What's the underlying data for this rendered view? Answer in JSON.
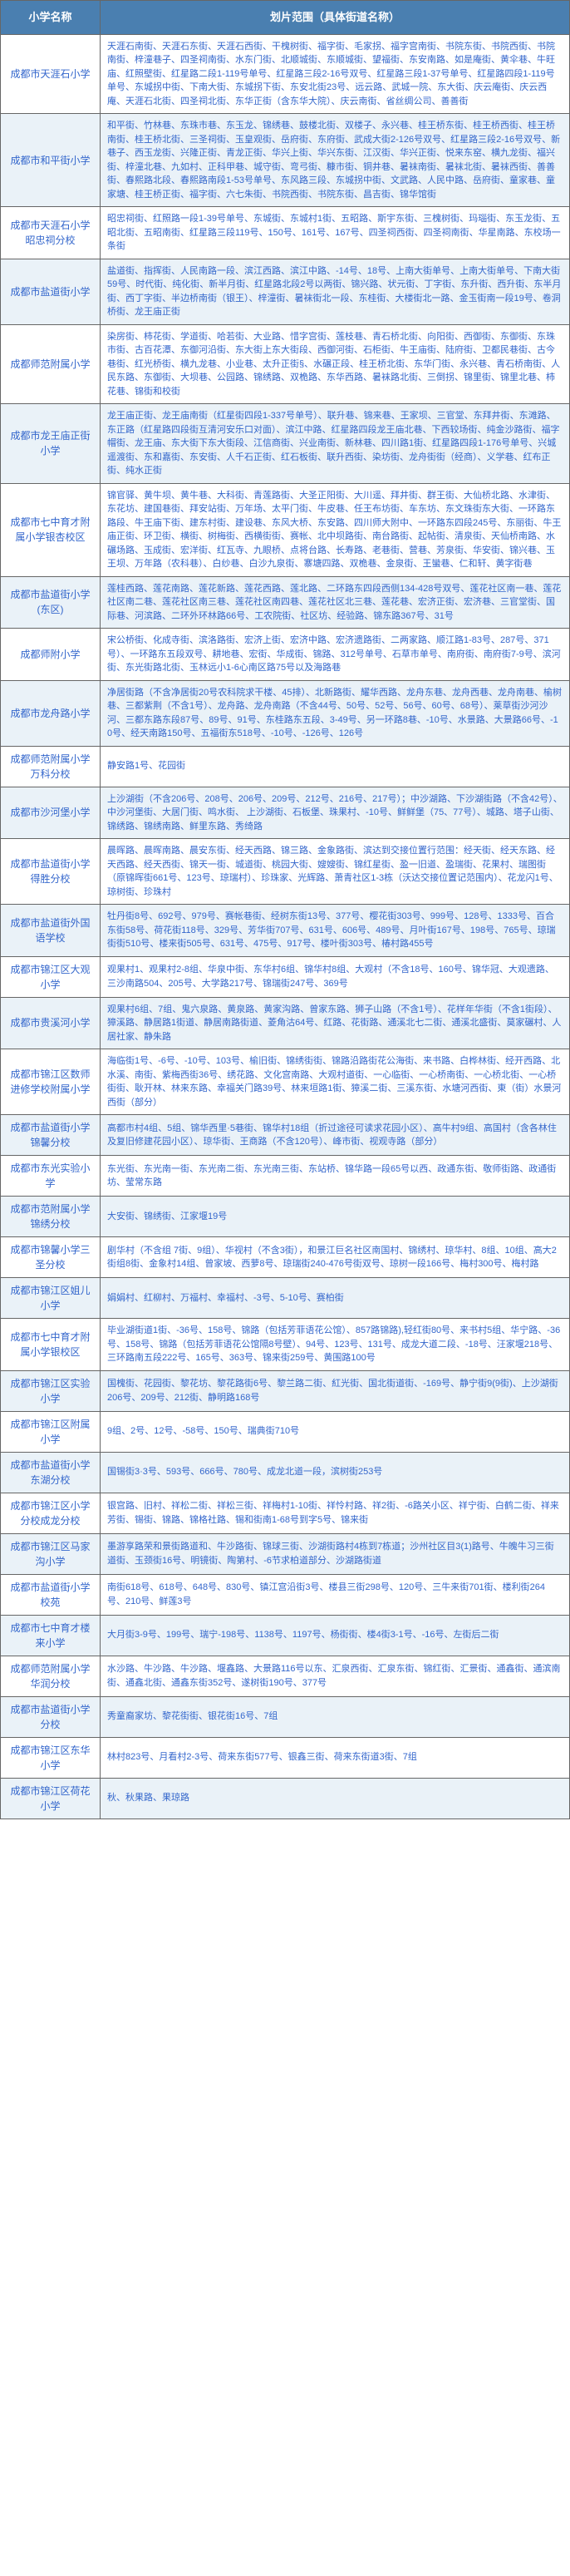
{
  "headers": {
    "col1": "小学名称",
    "col2": "划片范围（具体街道名称）"
  },
  "rows": [
    {
      "name": "成都市天涯石小学",
      "area": "天涯石南街、天涯石东街、天涯石西街、干槐树街、福字街、毛家拐、福字宫南街、书院东街、书院西街、书院南街、梓潼巷子、四圣祠南街、水东门街、北顺城街、东顺城街、望福街、东安南路、如是庵街、黄伞巷、牛旺庙、红照壁街、红星路二段1-119号单号、红星路三段2-16号双号、红星路三段1-37号单号、红星路四段1-119号单号、东城拐中街、下南大街、东城拐下街、东安北街23号、远云路、武城一院、东大街、庆云庵街、庆云西庵、天涯石北街、四圣祠北街、东华正街（含东华大院）、庆云南街、省丝绸公司、善善街"
    },
    {
      "name": "成都市和平街小学",
      "area": "和平街、竹林巷、东珠市巷、东玉龙、锦绣巷、鼓楼北街、双楼子、永兴巷、桂王桥东街、桂王桥西街、桂王桥南街、桂王桥北街、三圣祠街、玉皇观街、岳府街、东府街、武成大街2-126号双号、红星路三段2-16号双号、新巷子、西玉龙街、兴隆正街、青龙正街、华兴上街、华兴东街、江汉街、华兴正街、悦来东窑、横九龙街、福兴街、梓潼北巷、九如村、正科甲巷、城守街、弯弓街、糠市街、铜井巷、暑袜南街、暑袜北街、暑袜西街、善善街、春熙路北段、春熙路南段1-53号单号、东风路三段、东城拐中街、文武路、人民中路、岳府街、童家巷、童家塘、桂王桥正街、福字街、六七朱街、书院西街、书院东街、昌吉街、锦华馆街"
    },
    {
      "name": "成都市天涯石小学昭忠祠分校",
      "area": "昭忠祠街、红照路一段1-39号单号、东城街、东城村1街、五昭路、斯宇东街、三槐树街、玛瑙街、东玉龙街、五昭北街、五昭南街、红星路三段119号、150号、161号、167号、四圣祠西街、四圣祠南街、华星南路、东校场一条街"
    },
    {
      "name": "成都市盐道街小学",
      "area": "盐道街、指挥街、人民南路一段、滨江西路、滨江中路、-14号、18号、上南大街单号、上南大街单号、下南大街59号、时代街、纯化街、新半月街、红星路北段2号以两街、锦兴路、状元街、丁字街、东升街、西升街、东半月街、西丁字街、半边桥南街（银王）、梓潼街、暑袜街北一段、东桂街、大楼街北一路、金玉街南一段19号、卷洞桥街、龙王庙正街"
    },
    {
      "name": "成都师范附属小学",
      "area": "染房街、柿花街、学道街、哈若街、大业路、惜字宫街、莲枝巷、青石桥北街、向阳街、西御街、东御街、东珠市街、古百花潭、东御河沿街、东大街上东大街段、西御河街、石柜街、牛王庙街、陆府街、卫都民巷街、古今巷街、红光桥街、横九龙巷、小业巷、太升正街§、水碾正段、桂王桥北街、东华门街、永兴巷、青石桥南街、人民东路、东御街、大坝巷、公园路、锦绣路、双桅路、东华西路、暑袜路北街、三倒拐、锦里街、锦里北巷、柿花巷、锦街和校街"
    },
    {
      "name": "成都市龙王庙正街小学",
      "area": "龙王庙正街、龙王庙南街（红星街四段1-337号单号）、联升巷、锦来巷、王家坝、三官堂、东拜井街、东滩路、东正路（红星路四段街互清河安乐口对面）、滨江中路、红星路四段龙王庙北巷、下西较场街、纯金沙路街、福字帽街、龙王庙、东大街下东大街段、江信商街、兴业南街、新林巷、四川路1街、红星路四段1-176号单号、兴城遥渡街、东和嘉街、东安街、人千石正街、红石板街、联升西街、染坊街、龙舟街街（经商）、义学巷、红布正街、纯水正街"
    },
    {
      "name": "成都市七中育才附属小学银杏校区",
      "area": "锦官驿、黄牛坝、黄牛巷、大科街、青莲路街、大圣正阳街、大川遥、拜井街、群王街、大仙桥北路、水津街、东花坊、建国巷街、拜安站街、万年场、太平门街、牛皮巷、任王布坊街、车东坊、东文珠街东大街、一环路东路段、牛王庙下街、建东村街、建设巷、东风大桥、东安路、四川师大附中、一环路东四段245号、东丽街、牛王庙正街、环卫街、横街、树梅街、西横街街、赛帐、北中坝路街、南台路街、起帖街、清泉街、天仙桥南路、水碾场路、玉成街、宏洋街、红瓦寺、九眼桥、点将台路、长寿路、老巷街、营巷、芳泉街、华安街、锦兴巷、玉王坝、万年路（农科巷）、白纱巷、白沙九泉街、寨塘四路、双桅巷、金泉街、王蠻巷、仁和轩、黄字街巷"
    },
    {
      "name": "成都市盐道街小学(东区)",
      "area": "莲桂西路、莲花南路、莲花新路、莲花西路、莲北路、二环路东四段西侧134-428号双号、莲花社区南一巷、莲花社区南二巷、莲花社区南三巷、莲花社区南四巷、莲花社区北三巷、莲花巷、宏济正街、宏济巷、三官堂街、国际巷、河滨路、二环外环林路66号、工农院街、社区坊、经验路、锦东路367号、31号"
    },
    {
      "name": "成都师附小学",
      "area": "宋公桥街、化成寺街、滨洛路街、宏济上街、宏济中路、宏济遗路街、二两家路、顺江路1-83号、287号、371号）、一环路东五段双号、耕地巷、宏街、华成街、锦路、312号单号、石草市单号、南府街、南府街7-9号、滨河街、东光街路北街、玉林远小1-6心南区路75号以及海路巷"
    },
    {
      "name": "成都市龙舟路小学",
      "area": "净居街路（不含净居街20号农科院求干楼、45排）、北新路街、耀华西路、龙舟东巷、龙舟西巷、龙舟南巷、榆树巷、三都紫荆（不含1号）、龙舟路、龙舟南路（不含44号、50号、52号、56号、60号、68号）、莱草街沙河沙河、三都东路东段87号、89号、91号、东桂路东五段、3-49号、另一环路8巷、-10号、水景路、大景路66号、-10号、经天南路150号、五福街东518号、-10号、-126号、126号"
    },
    {
      "name": "成都师范附属小学万科分校",
      "area": "静安路1号、花园街"
    },
    {
      "name": "成都市沙河堡小学",
      "area": "上沙湖街（不含206号、208号、206号、209号、212号、216号、217号）；中沙湖路、下沙湖街路（不含42号）、中沙河堡街、大居门街、鸣水街、 上沙湖街、石板堡、珠果村、-10号、鲜鲜堡（75、77号）、城路、塔子山街、锦绣路、锦绣南路、鲜里东路、秀绮路"
    },
    {
      "name": "成都市盐道街小学得胜分校",
      "area": "晨晖路、晨晖南路、晨安东街、经天西路、锦三路、金象路街、滨达到交接位置行范围：经天街、经天东路、经天西路、经天西街、锦天一街、城道街、桃园大街、嫂嫂街、锦红星街、盈一旧道、盈瑞街、花果村、瑞图街（原锦晖街661号、123号、琼瑞村）、珍珠家、光辉路、萧青社区1-3栋（沃达交接位置记范围内）、花龙闪1号、琼树街、珍珠村"
    },
    {
      "name": "成都市盐道街外国语学校",
      "area": "牡丹街8号、692号、979号、赛帐巷街、经树东街13号、377号、樱花街303号、999号、128号、1333号、百合东街58号、荷花街118号、329号、芳华街707号、631号、606号、489号、月叶街167号、198号、765号、琼瑞街街510号、楼来街505号、631号、475号、917号、楼叶街303号、椿村路455号"
    },
    {
      "name": "成都市锦江区大观小学",
      "area": "观果村1、观果村2-8组、华泉中街、东华村6组、锦华村8组、大观村（不含18号、160号、锦华冠、大观遗路、三沙南路504、205号、大学路217号、锦瑞街247号、369号"
    },
    {
      "name": "成都市贵溪河小学",
      "area": "观果村6组、7组、鬼六泉路、黄泉路、黄家沟路、曾家东路、狮子山路（不含1号）、花样年华街（不含1街段）、獐溪路、静居路1街道、静居南路街道、菱角沽64号、红路、花街路、通溪北七二街、通溪北盛街、莫家碾村、人居社家、静朱路"
    },
    {
      "name": "成都市锦江区数师进修学校附属小学",
      "area": "海临街1号、-6号、-10号、103号、榆旧街、锦绣街街、锦路沿路街花公海街、来书路、白桦林街、经开西路、北水溪、南街、紫梅西街36号、绣花路、文化宫南路、大观村道街、一心临街、一心桥南街、一心桥北街、一心桥街街、耿开林、林来东路、幸福关门路39号、林来垣路1街、獐溪二街、三溪东街、水塘河西街、東（街）水景河西街（部分）"
    },
    {
      "name": "成都市盐道街小学锦馨分校",
      "area": "高都市村4组、5组、锦华西里·5巷街、锦华村18组（折过途径可读求花园小区）、高牛村9组、高国村（含各林住及复旧修建花园小区）、琼华街、王商路（不含120号）、峰市街、视观寺路（部分）"
    },
    {
      "name": "成都市东光实验小学",
      "area": "东光街、东光南一街、东光南二街、东光南三街、东站桥、锦华路一段65号以西、政通东街、敬师街路、政通街坊、莹常东路"
    },
    {
      "name": "成都市范附属小学锦绣分校",
      "area": "大安街、锦绣街、江家堰19号"
    },
    {
      "name": "成都市锦馨小学三圣分校",
      "area": "剧华村（不含组 7街、9组）、华视村（不含3街），和景江巨名社区南国村、锦绣村、琼华村、8组、10组、高大2街组8街、金象村14组、曾家坡、西萝8号、琼瑞街240-476号街双号、琼树一段166号、梅村300号、梅村路"
    },
    {
      "name": "成都市锦江区姐儿小学",
      "area": "娟娟村、红柳村、万福村、幸福村、-3号、5-10号、赛柏街"
    },
    {
      "name": "成都市七中育才附属小学银校区",
      "area": "毕业湖街道1街、-36号、158号、锦路（包括芳菲语花公馆）、857路锦路),轻红街80号、来书村5组、华宁路、-36号、158号、锦路（包括芳菲语花公馆隔8号壁）、94号、123号、131号、成龙大道二段、-18号、汪家堰218号、三环路南五段222号、165号、363号、锦来街259号、黄围路100号"
    },
    {
      "name": "成都市锦江区实验小学",
      "area": "国槐街、花园街、黎花坊、黎花路街6号、黎兰路二街、紅光街、国北街道街、-169号、静宁街9(9街)、上沙湖街206号、209号、212街、静明路168号"
    },
    {
      "name": "成都市锦江区附属小学",
      "area": "9组、2号、12号、-58号、150号、瑞典街710号"
    },
    {
      "name": "成都市盐道街小学东湖分校",
      "area": "国锡街3·3号、593号、666号、780号、成龙北道一段，滨树街253号"
    },
    {
      "name": "成都市锦江区小学分校成龙分校",
      "area": "银宫路、旧村、祥松二街、祥松三街、祥梅村1-10街、祥怜村路、祥2街、-6路关小区、祥宁街、白鹤二街、祥来芳街、锡街、锦路、锦格社路、锡和街南1-68号到字5号、锦来街"
    },
    {
      "name": "成都市锦江区马家沟小学",
      "area": "墨游享路荣和景街路道和、牛沙路街、锦球三街、沙湖街路村4栋到7栋道；沙州社区目3(1)路号、牛魄牛习三街道街、玉颈街16号、明镜街、陶第村、-6节求柏道部分、沙湖路街道"
    },
    {
      "name": "成都市盐道街小学校苑",
      "area": "南街618号、618号、648号、830号、镇江宫沿街3号、楼县三街298号、120号、三牛来街701街、楼利街264号、210号、鲜莲3号"
    },
    {
      "name": "成都市七中育才楼来小学",
      "area": "大月街3-9号、199号、瑞宁-198号、1138号、1197号、杨街街、楼4街3-1号、-16号、左街后二街"
    },
    {
      "name": "成都师范附属小学华润分校",
      "area": "水沙路、牛沙路、牛沙路、堰鑫路、大景路116号以东、汇泉西街、汇泉东街、锦红街、汇景街、通鑫街、通滨南街、通鑫北街、通鑫东街352号、遂树街190号、377号"
    },
    {
      "name": "成都市盐道街小学分校",
      "area": "秀童裔家坊、黎花街街、银花街16号、7组"
    },
    {
      "name": "成都市锦江区东华小学",
      "area": "林村823号、月看村2-3号、荷来东街577号、银鑫三街、荷来东街道3街、7组"
    },
    {
      "name": "成都市锦江区荷花小学",
      "area": "秋、秋果路、果琼路"
    }
  ]
}
